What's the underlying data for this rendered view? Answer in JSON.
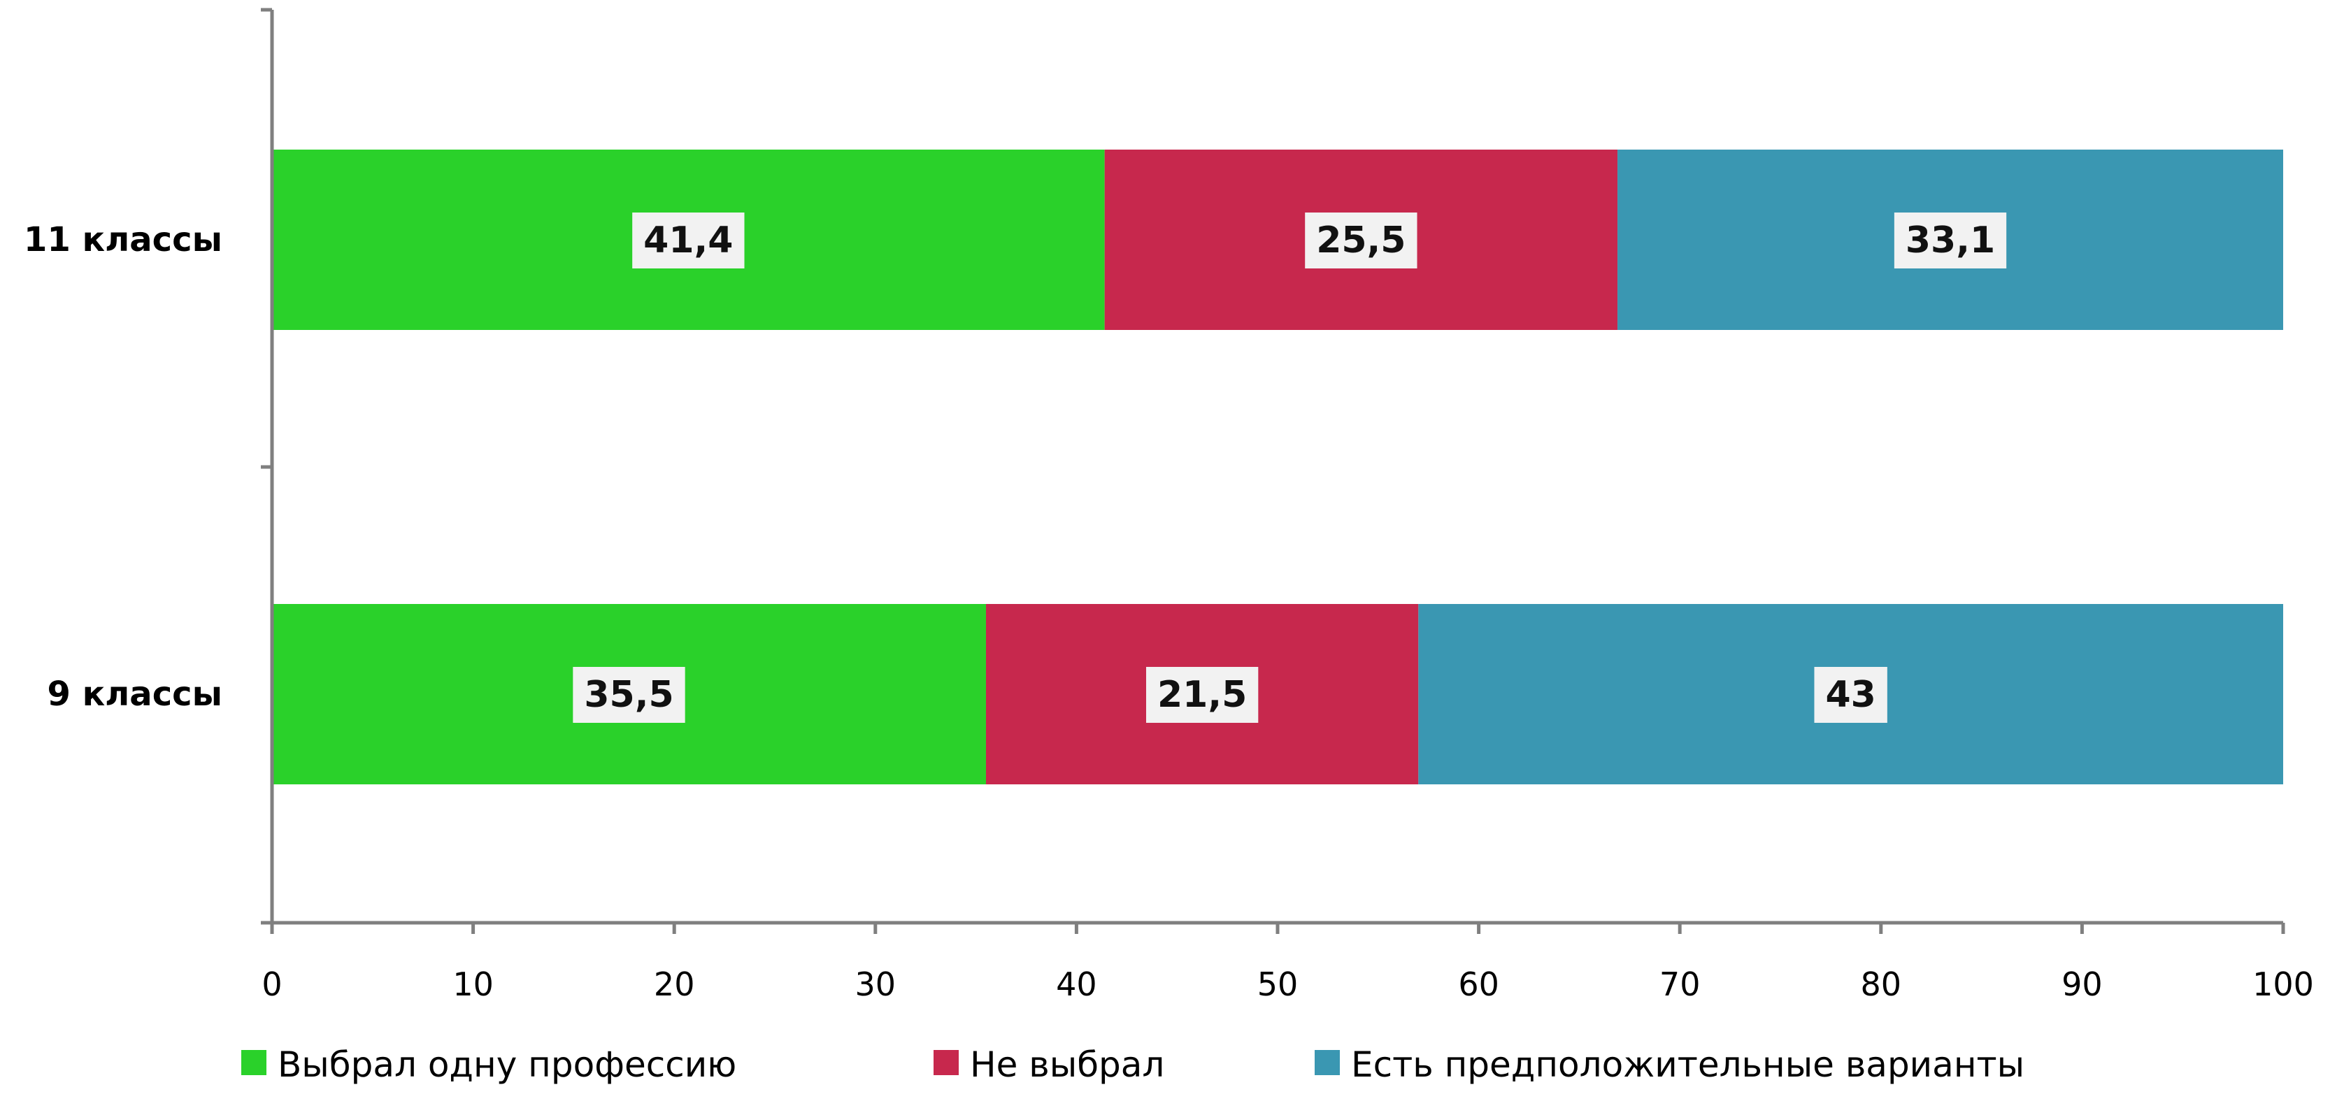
{
  "chart_data": {
    "type": "bar",
    "orientation": "horizontal",
    "stacked": true,
    "categories": [
      "11 классы",
      "9 классы"
    ],
    "series": [
      {
        "name": "Выбрал одну профессию",
        "color": "#2ad12a",
        "values": [
          41.4,
          35.5
        ],
        "labels": [
          "41,4",
          "35,5"
        ]
      },
      {
        "name": "Не выбрал",
        "color": "#c7284d",
        "values": [
          25.5,
          21.5
        ],
        "labels": [
          "25,5",
          "21,5"
        ]
      },
      {
        "name": "Есть предположительные варианты",
        "color": "#3a97b2",
        "values": [
          33.1,
          43
        ],
        "labels": [
          "33,1",
          "43"
        ]
      }
    ],
    "xlim": [
      0,
      100
    ],
    "xticks": [
      0,
      10,
      20,
      30,
      40,
      50,
      60,
      70,
      80,
      90,
      100
    ],
    "grid": false,
    "legend_position": "bottom"
  }
}
